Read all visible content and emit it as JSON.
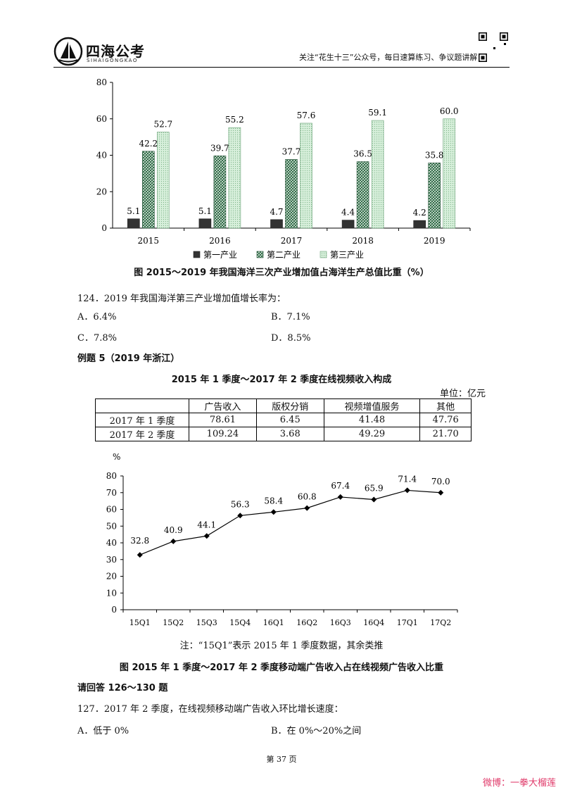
{
  "header": {
    "logo_text": "四海公考",
    "logo_sub": "SIHAIGONGKAO",
    "note": "关注“花生十三”公众号，每日速算练习、争议题讲解"
  },
  "chart1": {
    "caption": "图 2015～2019 年我国海洋三次产业增加值占海洋生产总值比重（%）",
    "legend": [
      "第一产业",
      "第二产业",
      "第三产业"
    ],
    "chart_data": {
      "type": "bar",
      "categories": [
        "2015",
        "2016",
        "2017",
        "2018",
        "2019"
      ],
      "series": [
        {
          "name": "第一产业",
          "values": [
            5.1,
            5.1,
            4.7,
            4.4,
            4.2
          ],
          "color": "#333333"
        },
        {
          "name": "第二产业",
          "values": [
            42.2,
            39.7,
            37.7,
            36.5,
            35.8
          ],
          "color": "#2e6b45"
        },
        {
          "name": "第三产业",
          "values": [
            52.7,
            55.2,
            57.6,
            59.1,
            60.0
          ],
          "color": "#c9e8cf"
        }
      ],
      "value_labels": [
        [
          "5.1",
          "42.2",
          "52.7"
        ],
        [
          "5.1",
          "39.7",
          "55.2"
        ],
        [
          "4.7",
          "37.7",
          "57.6"
        ],
        [
          "4.4",
          "36.5",
          "59.1"
        ],
        [
          "4.2",
          "35.8",
          "60.0"
        ]
      ],
      "yticks": [
        "0",
        "20",
        "40",
        "60",
        "80"
      ],
      "ylim": [
        0,
        80
      ]
    }
  },
  "q124": {
    "question": "124．2019 年我国海洋第三产业增加值增长率为：",
    "options": [
      "A．6.4%",
      "B．7.1%",
      "C．7.8%",
      "D．8.5%"
    ]
  },
  "example": {
    "heading": "例题 5（2019 年浙江）",
    "table_title": "2015 年 1 季度～2017 年 2 季度在线视频收入构成",
    "unit": "单位：亿元",
    "headers": [
      "",
      "广告收入",
      "版权分销",
      "视频增值服务",
      "其他"
    ],
    "rows": [
      [
        "2017 年 1 季度",
        "78.61",
        "6.45",
        "41.48",
        "47.76"
      ],
      [
        "2017 年 2 季度",
        "109.24",
        "3.68",
        "49.29",
        "21.70"
      ]
    ]
  },
  "chart2": {
    "note": "注：“15Q1”表示 2015 年 1 季度数据，其余类推",
    "caption": "图 2015 年 1 季度～2017 年 2 季度移动端广告收入占在线视频广告收入比重",
    "chart_data": {
      "type": "line",
      "categories": [
        "15Q1",
        "15Q2",
        "15Q3",
        "15Q4",
        "16Q1",
        "16Q2",
        "16Q3",
        "16Q4",
        "17Q1",
        "17Q2"
      ],
      "values": [
        32.8,
        40.9,
        44.1,
        56.3,
        58.4,
        60.8,
        67.4,
        65.9,
        71.4,
        70.0
      ],
      "value_labels": [
        "32.8",
        "40.9",
        "44.1",
        "56.3",
        "58.4",
        "60.8",
        "67.4",
        "65.9",
        "71.4",
        "70.0"
      ],
      "yticks": [
        "0",
        "10",
        "20",
        "30",
        "40",
        "50",
        "60",
        "70",
        "80"
      ],
      "ylabel": "%",
      "ylim": [
        0,
        80
      ]
    }
  },
  "q127": {
    "intro": "请回答 126～130 题",
    "question": "127．2017 年 2 季度，在线视频移动端广告收入环比增长速度：",
    "options": [
      "A．低于 0%",
      "B．在 0%～20%之间"
    ]
  },
  "footer": {
    "page": "第 37 页",
    "weibo": "微博：一拳大榴莲"
  }
}
